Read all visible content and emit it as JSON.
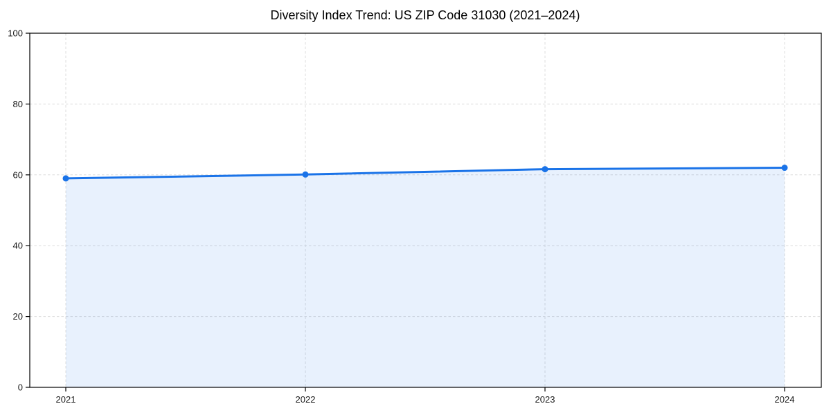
{
  "chart_data": {
    "type": "area",
    "title": "Diversity Index Trend: US ZIP Code 31030 (2021–2024)",
    "categories": [
      "2021",
      "2022",
      "2023",
      "2024"
    ],
    "series": [
      {
        "name": "Diversity Index",
        "values": [
          59.0,
          60.1,
          61.6,
          62.0
        ]
      }
    ],
    "xlabel": "",
    "ylabel": "",
    "ylim": [
      0,
      100
    ],
    "yticks": [
      0,
      20,
      40,
      60,
      80,
      100
    ],
    "grid": true,
    "grid_style": "dashed",
    "legend_position": "none",
    "marker": "circle",
    "colors": {
      "line": "#1a73e8",
      "marker": "#1a73e8",
      "fill": "rgba(26,115,232,0.10)",
      "grid": "#dcdcdc",
      "axis": "#000000",
      "tick_text": "#1a1a1a",
      "title_text": "#000000",
      "background": "#ffffff"
    }
  }
}
